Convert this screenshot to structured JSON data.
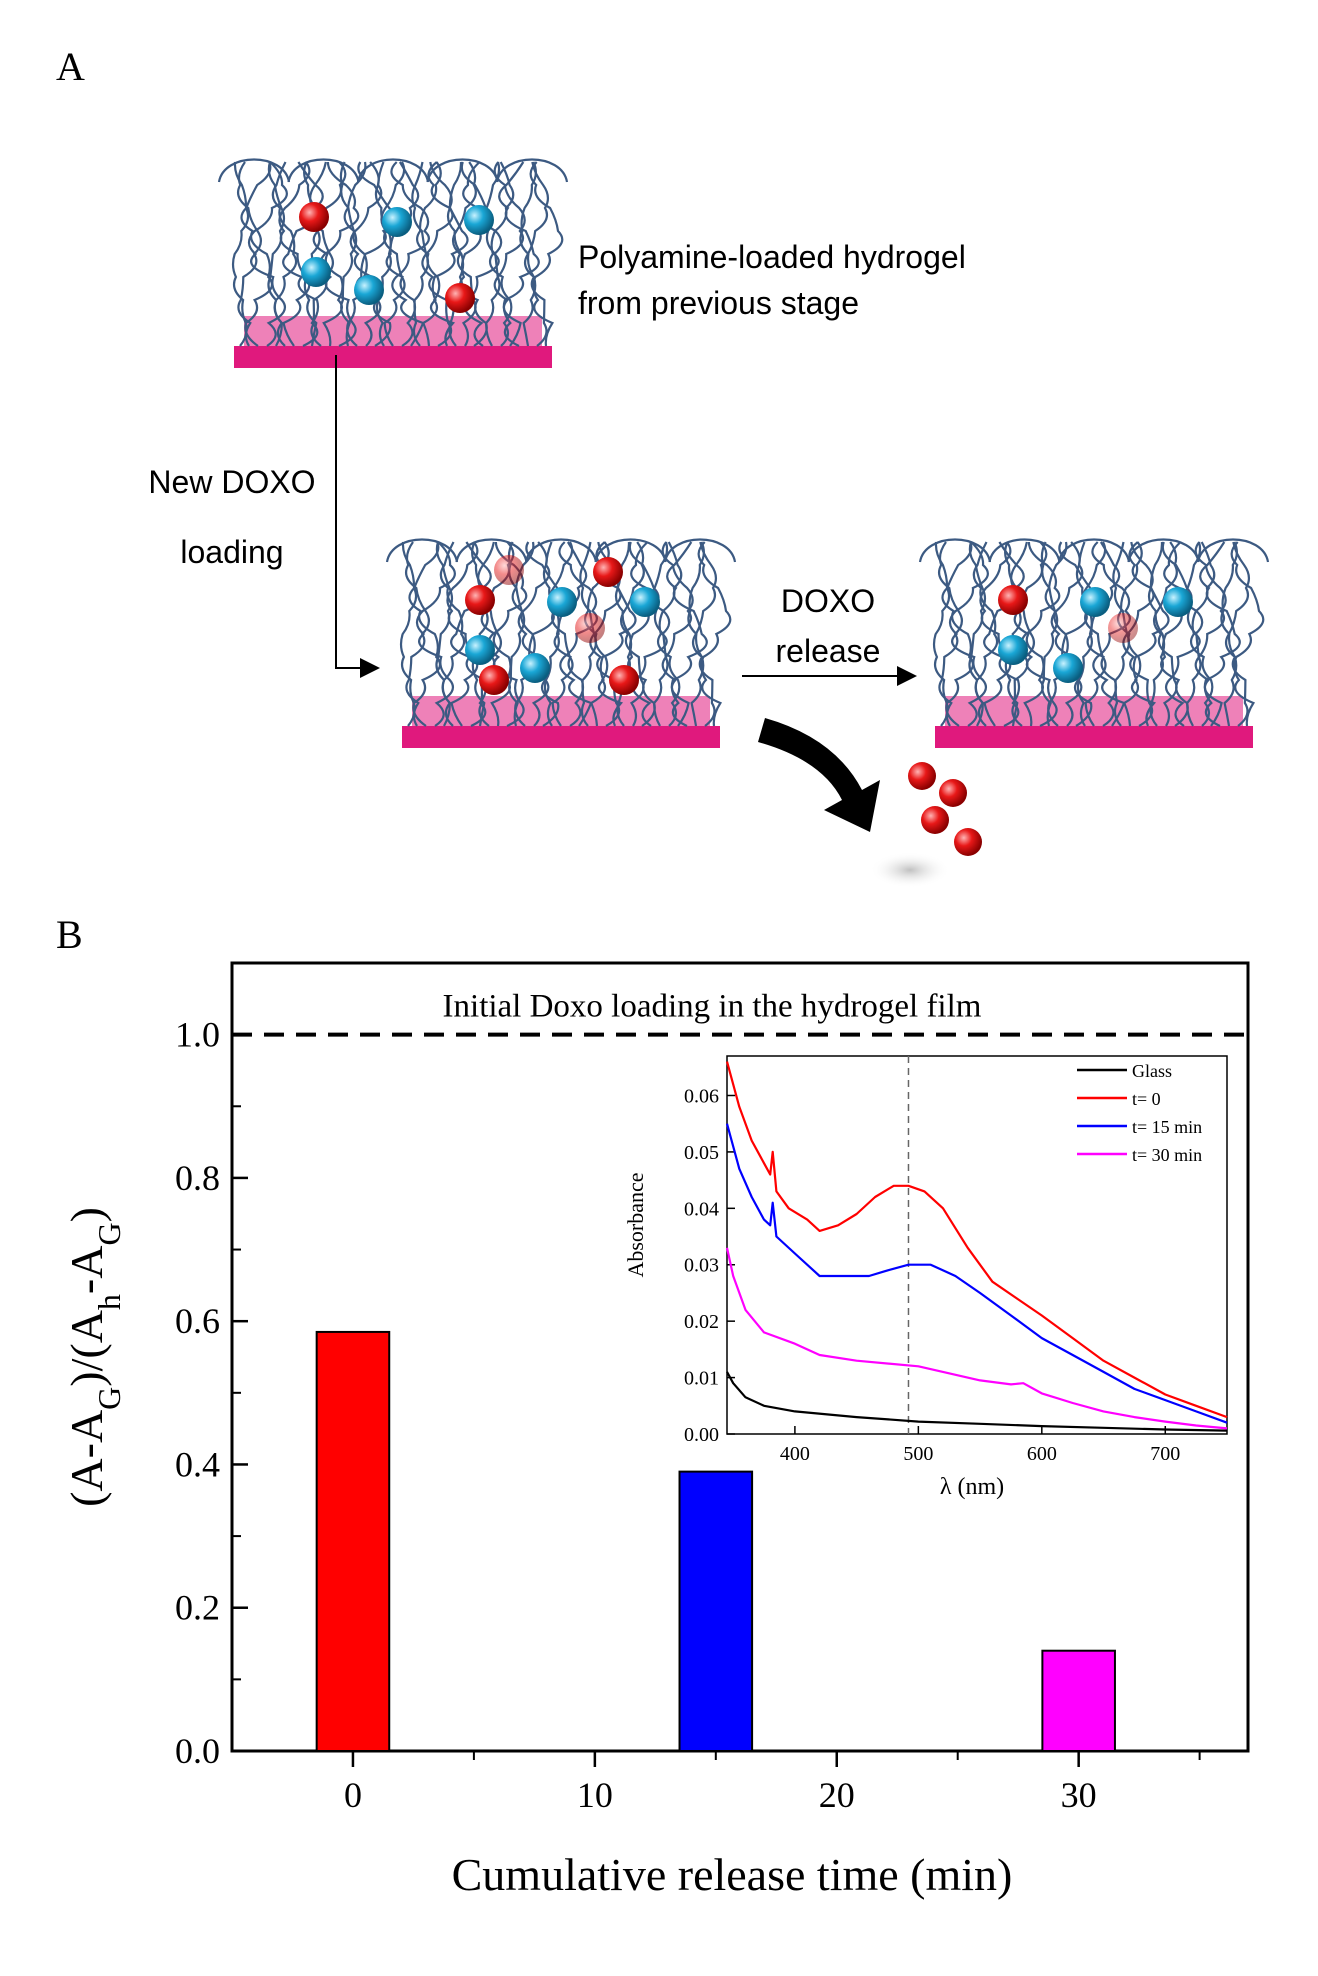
{
  "panel_a": {
    "label": "A",
    "hydrogel_caption_line1": "Polyamine-loaded hydrogel",
    "hydrogel_caption_line2": "from previous stage",
    "loading_label_line1": "New DOXO",
    "loading_label_line2": "loading",
    "release_label_line1": "DOXO",
    "release_label_line2": "release",
    "colors": {
      "substrate": "#e0197d",
      "fibers": "#3c5a82",
      "doxo": "#e01818",
      "polyamine": "#1aa7d6"
    }
  },
  "panel_b": {
    "label": "B"
  },
  "chart_data": [
    {
      "type": "bar",
      "x": [
        0,
        15,
        30
      ],
      "values": [
        0.585,
        0.39,
        0.14
      ],
      "colors": [
        "#ff0000",
        "#0000ff",
        "#ff00ff"
      ],
      "xlabel": "Cumulative release time (min)",
      "ylabel": "(A-A_G)/(A_h-A_G)",
      "ylabel_parts": {
        "p1": "(A-A",
        "s1": "G",
        "p2": ")/(A",
        "s2": "h",
        "p3": "-A",
        "s3": "G",
        "p4": ")"
      },
      "xlim": [
        -5,
        37
      ],
      "ylim": [
        0,
        1.1
      ],
      "xticks": [
        0,
        10,
        20,
        30
      ],
      "yticks": [
        0.0,
        0.2,
        0.4,
        0.6,
        0.8,
        1.0
      ],
      "ytick_labels": [
        "0.0",
        "0.2",
        "0.4",
        "0.6",
        "0.8",
        "1.0"
      ],
      "reference_line": {
        "y": 1.0,
        "style": "dashed",
        "label": "Initial Doxo loading in the hydrogel film"
      }
    },
    {
      "type": "line",
      "xlabel": "λ (nm)",
      "ylabel": "Absorbance",
      "xlim": [
        345,
        750
      ],
      "ylim": [
        0,
        0.067
      ],
      "xticks": [
        400,
        500,
        600,
        700
      ],
      "yticks": [
        0.0,
        0.01,
        0.02,
        0.03,
        0.04,
        0.05,
        0.06
      ],
      "ytick_labels": [
        "0.00",
        "0.01",
        "0.02",
        "0.03",
        "0.04",
        "0.05",
        "0.06"
      ],
      "vertical_marker": {
        "x": 492,
        "style": "dashed"
      },
      "legend": "top-right",
      "series": [
        {
          "name": "Glass",
          "color": "#000000",
          "points": [
            [
              345,
              0.011
            ],
            [
              350,
              0.009
            ],
            [
              360,
              0.0065
            ],
            [
              375,
              0.005
            ],
            [
              400,
              0.004
            ],
            [
              450,
              0.003
            ],
            [
              500,
              0.0022
            ],
            [
              550,
              0.0018
            ],
            [
              600,
              0.0014
            ],
            [
              650,
              0.0011
            ],
            [
              700,
              0.0008
            ],
            [
              750,
              0.0006
            ]
          ]
        },
        {
          "name": "t= 0",
          "color": "#ff0000",
          "points": [
            [
              345,
              0.066
            ],
            [
              355,
              0.058
            ],
            [
              365,
              0.052
            ],
            [
              375,
              0.048
            ],
            [
              380,
              0.046
            ],
            [
              382,
              0.05
            ],
            [
              385,
              0.043
            ],
            [
              395,
              0.04
            ],
            [
              410,
              0.038
            ],
            [
              420,
              0.036
            ],
            [
              435,
              0.037
            ],
            [
              450,
              0.039
            ],
            [
              465,
              0.042
            ],
            [
              480,
              0.044
            ],
            [
              492,
              0.044
            ],
            [
              505,
              0.043
            ],
            [
              520,
              0.04
            ],
            [
              540,
              0.033
            ],
            [
              560,
              0.027
            ],
            [
              580,
              0.024
            ],
            [
              600,
              0.021
            ],
            [
              625,
              0.017
            ],
            [
              650,
              0.013
            ],
            [
              675,
              0.01
            ],
            [
              700,
              0.007
            ],
            [
              725,
              0.005
            ],
            [
              750,
              0.003
            ]
          ]
        },
        {
          "name": "t= 15 min",
          "color": "#0000ff",
          "points": [
            [
              345,
              0.055
            ],
            [
              355,
              0.047
            ],
            [
              365,
              0.042
            ],
            [
              375,
              0.038
            ],
            [
              380,
              0.037
            ],
            [
              382,
              0.041
            ],
            [
              385,
              0.035
            ],
            [
              400,
              0.032
            ],
            [
              420,
              0.028
            ],
            [
              440,
              0.028
            ],
            [
              460,
              0.028
            ],
            [
              475,
              0.029
            ],
            [
              492,
              0.03
            ],
            [
              510,
              0.03
            ],
            [
              530,
              0.028
            ],
            [
              550,
              0.025
            ],
            [
              575,
              0.021
            ],
            [
              600,
              0.017
            ],
            [
              625,
              0.014
            ],
            [
              650,
              0.011
            ],
            [
              675,
              0.008
            ],
            [
              700,
              0.006
            ],
            [
              725,
              0.004
            ],
            [
              750,
              0.002
            ]
          ]
        },
        {
          "name": "t= 30 min",
          "color": "#ff00ff",
          "points": [
            [
              345,
              0.033
            ],
            [
              350,
              0.028
            ],
            [
              360,
              0.022
            ],
            [
              375,
              0.018
            ],
            [
              400,
              0.016
            ],
            [
              420,
              0.014
            ],
            [
              450,
              0.013
            ],
            [
              500,
              0.012
            ],
            [
              520,
              0.011
            ],
            [
              550,
              0.0095
            ],
            [
              575,
              0.0088
            ],
            [
              585,
              0.009
            ],
            [
              600,
              0.0072
            ],
            [
              625,
              0.0055
            ],
            [
              650,
              0.004
            ],
            [
              675,
              0.003
            ],
            [
              700,
              0.0022
            ],
            [
              725,
              0.0015
            ],
            [
              750,
              0.001
            ]
          ]
        }
      ]
    }
  ]
}
